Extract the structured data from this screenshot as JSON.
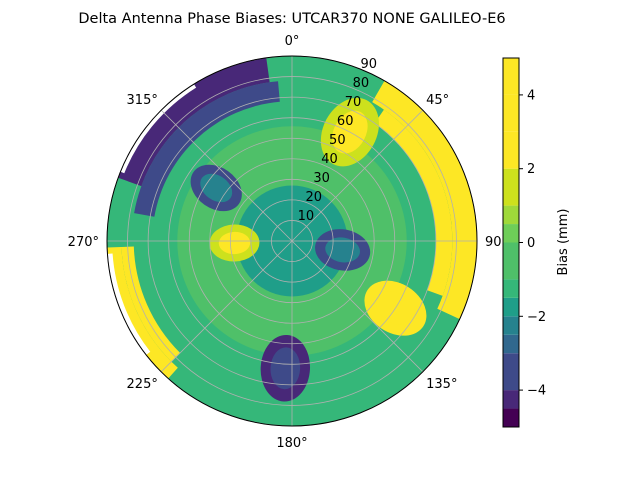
{
  "chart_data": {
    "type": "polar-contour",
    "title": "Delta Antenna Phase Biases: UTCAR370        NONE GALILEO-E6",
    "angle_ticks": [
      {
        "deg": 0,
        "label": "0°"
      },
      {
        "deg": 45,
        "label": "45°"
      },
      {
        "deg": 90,
        "label": "90"
      },
      {
        "deg": 135,
        "label": "135°"
      },
      {
        "deg": 180,
        "label": "180°"
      },
      {
        "deg": 225,
        "label": "225°"
      },
      {
        "deg": 270,
        "label": "270°"
      },
      {
        "deg": 315,
        "label": "315°"
      }
    ],
    "radial_ticks": [
      10,
      20,
      30,
      40,
      50,
      60,
      70,
      80,
      90
    ],
    "radial_range": [
      0,
      90
    ],
    "colorbar": {
      "label": "Bias (mm)",
      "range": [
        -5,
        5
      ],
      "ticks": [
        -4,
        -2,
        0,
        2,
        4
      ],
      "levels": [
        -5,
        -4.5,
        -4,
        -3,
        -2.5,
        -2,
        -1.5,
        -1,
        0,
        0.5,
        1,
        2,
        3,
        4,
        5
      ],
      "colors": [
        "#440154",
        "#482878",
        "#3e4a89",
        "#31688e",
        "#26828e",
        "#1f9e89",
        "#35b779",
        "#4fc069",
        "#6ece58",
        "#9fd93a",
        "#cde11d",
        "#fde725"
      ]
    },
    "contour_regions": [
      {
        "name": "east-high-band",
        "bias": 4,
        "az_start": 30,
        "az_end": 115,
        "r_min": 78,
        "r_max": 90
      },
      {
        "name": "east-mid-band",
        "bias": 3,
        "az_start": 35,
        "az_end": 110,
        "r_min": 70,
        "r_max": 78
      },
      {
        "name": "west-yellow-band",
        "bias": 5,
        "az_start": 222,
        "az_end": 268,
        "r_min": 83,
        "r_max": 90
      },
      {
        "name": "west-green-band",
        "bias": 3,
        "az_start": 225,
        "az_end": 268,
        "r_min": 77,
        "r_max": 83
      },
      {
        "name": "northwest-dark-band",
        "bias": -4.5,
        "az_start": 290,
        "az_end": 352,
        "r_min": 78,
        "r_max": 90
      },
      {
        "name": "northwest-blue-band",
        "bias": -3.5,
        "az_start": 280,
        "az_end": 355,
        "r_min": 68,
        "r_max": 78
      },
      {
        "name": "north-green-lobe",
        "bias": 2.5,
        "az": 28,
        "r": 60,
        "size": 13
      },
      {
        "name": "southeast-green-lobe",
        "bias": 3,
        "az": 123,
        "r": 60,
        "size": 12
      },
      {
        "name": "west-green-lobe",
        "bias": 2.5,
        "az": 268,
        "r": 28,
        "size": 9
      },
      {
        "name": "south-dark-lobe",
        "bias": -3.5,
        "az": 183,
        "r": 62,
        "size": 12
      },
      {
        "name": "east-dark-lobe",
        "bias": -2.5,
        "az": 100,
        "r": 25,
        "size": 10
      },
      {
        "name": "west-east-dark-lobe",
        "bias": -2.5,
        "az": 305,
        "r": 45,
        "size": 10
      }
    ]
  }
}
